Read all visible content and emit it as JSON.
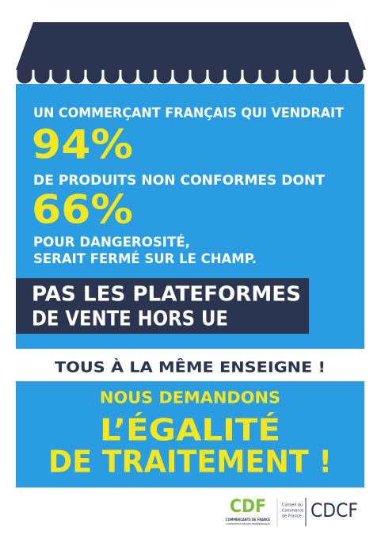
{
  "poster": {
    "line1": "UN COMMERÇANT FRANÇAIS QUI VENDRAIT",
    "stat1": "94%",
    "line2": "DE PRODUITS NON CONFORMES DONT",
    "stat2": "66%",
    "line3a": "POUR DANGEROSITÉ,",
    "line3b": "SERAIT FERMÉ SUR LE CHAMP.",
    "banner": [
      "PAS LES PLATEFORMES",
      "DE VENTE HORS UE"
    ],
    "slogan": "TOUS À LA MÊME ENSEIGNE !",
    "demand": "NOUS DEMANDONS",
    "headline": [
      "L’ÉGALITÉ",
      "DE TRAITEMENT !"
    ]
  },
  "logos": {
    "cdf_mark": "CDF",
    "cdf_name": "COMMERÇANTS DE FRANCE",
    "cdf_sub": "CONFÉDÉRATION DES INDÉPENDANTS",
    "cdcf_name": [
      "Conseil du",
      "Commerce",
      "de France"
    ],
    "cdcf_mark": "CDCF"
  }
}
